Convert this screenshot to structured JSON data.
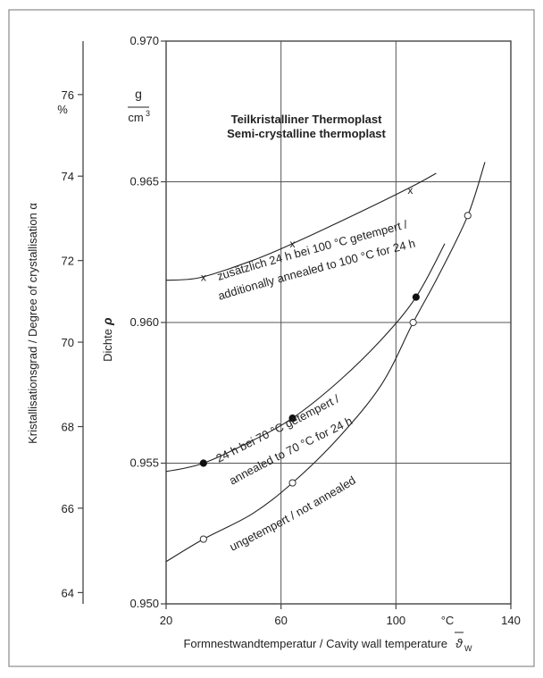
{
  "chart_data": {
    "type": "line",
    "title": "Teilkristalliner Thermoplast",
    "subtitle": "Semi-crystalline thermoplast",
    "xlabel": "Formnestwandtemperatur / Cavity wall temperature",
    "xlabel_symbol": "ϑ",
    "xlabel_subscript": "W",
    "x_unit": "°C",
    "xlim": [
      20,
      140
    ],
    "x_ticks": [
      "20",
      "60",
      "100",
      "140"
    ],
    "ylabel": "Dichte",
    "ylabel_symbol": "ρ",
    "y_unit_num": "g",
    "y_unit_den": "cm",
    "y_unit_exp": "3",
    "ylim": [
      0.95,
      0.97
    ],
    "y_ticks": [
      "0.950",
      "0.955",
      "0.960",
      "0.965",
      "0.970"
    ],
    "y2label": "Kristallisationsgrad / Degree of crystallisation α",
    "y2_unit": "%",
    "y2_ticks": [
      {
        "label": "64",
        "density": 0.9504
      },
      {
        "label": "66",
        "density": 0.9534
      },
      {
        "label": "68",
        "density": 0.9563
      },
      {
        "label": "70",
        "density": 0.9593
      },
      {
        "label": "72",
        "density": 0.9622
      },
      {
        "label": "74",
        "density": 0.9652
      },
      {
        "label": "76",
        "density": 0.9681
      }
    ],
    "grid": true,
    "series": [
      {
        "name": "zusätzlich 24 h bei 100 °C getempert / additionally annealed to 100 °C for 24 h",
        "label_line1": "zusätzlich 24 h bei 100 °C getempert /",
        "label_line2": "additionally annealed to 100 °C for 24 h",
        "marker": "x",
        "color": "#222222",
        "curve": [
          [
            20,
            0.9615
          ],
          [
            32,
            0.9616
          ],
          [
            50,
            0.9622
          ],
          [
            64,
            0.9628
          ],
          [
            85,
            0.9638
          ],
          [
            105,
            0.9648
          ],
          [
            114,
            0.9653
          ]
        ],
        "points": [
          [
            33,
            0.9616
          ],
          [
            64,
            0.9628
          ],
          [
            105,
            0.9647
          ]
        ]
      },
      {
        "name": "24 h bei 70 °C getempert / annealed to 70 °C for 24 h",
        "label_line1": "24 h bei 70 °C getempert /",
        "label_line2": "annealed to 70 °C for 24 h",
        "marker": "filled-circle",
        "color": "#222222",
        "curve": [
          [
            20,
            0.9547
          ],
          [
            33,
            0.955
          ],
          [
            50,
            0.9558
          ],
          [
            64,
            0.9566
          ],
          [
            80,
            0.9579
          ],
          [
            95,
            0.9594
          ],
          [
            107,
            0.9609
          ],
          [
            117,
            0.9628
          ]
        ],
        "points": [
          [
            33,
            0.955
          ],
          [
            64,
            0.9566
          ],
          [
            107,
            0.9609
          ]
        ]
      },
      {
        "name": "ungetempert / not annealed",
        "label_line1": "ungetempert / not annealed",
        "marker": "open-circle",
        "color": "#222222",
        "curve": [
          [
            20,
            0.9515
          ],
          [
            33,
            0.9523
          ],
          [
            50,
            0.9532
          ],
          [
            64,
            0.9543
          ],
          [
            80,
            0.9559
          ],
          [
            95,
            0.9578
          ],
          [
            106,
            0.96
          ],
          [
            115,
            0.9617
          ],
          [
            125,
            0.9638
          ],
          [
            131,
            0.9657
          ]
        ],
        "points": [
          [
            33,
            0.9523
          ],
          [
            64,
            0.9543
          ],
          [
            106,
            0.96
          ],
          [
            125,
            0.9638
          ]
        ]
      }
    ]
  }
}
